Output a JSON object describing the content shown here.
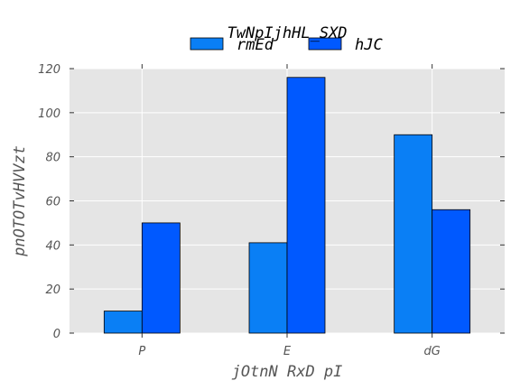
{
  "chart_data": {
    "type": "bar",
    "title": "TwNpIjhHL_SXD",
    "xlabel": "jOtnN RxD pI",
    "ylabel": "pnOTOTvHVVzt",
    "categories": [
      "P",
      "E",
      "dG"
    ],
    "series": [
      {
        "name": "rmEd",
        "values": [
          10,
          41,
          90
        ],
        "color": "#0a7ff5"
      },
      {
        "name": "hJC",
        "values": [
          50,
          116,
          56
        ],
        "color": "#0059ff"
      }
    ],
    "ylim": [
      0,
      120
    ],
    "yticks": [
      0,
      20,
      40,
      60,
      80,
      100,
      120
    ],
    "grid": true,
    "legend_position": "top-center",
    "background": "#e5e5e5"
  }
}
